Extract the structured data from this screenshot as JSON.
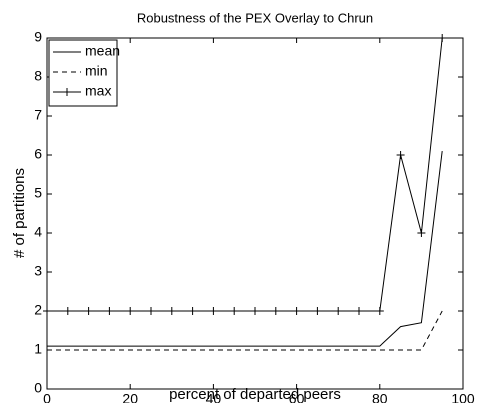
{
  "chart_data": {
    "type": "line",
    "title": "Robustness of the PEX Overlay to Chrun",
    "x_label": "percent of departed peers",
    "y_label": "# of partitions",
    "x": [
      0,
      5,
      10,
      15,
      20,
      25,
      30,
      35,
      40,
      45,
      50,
      55,
      60,
      65,
      70,
      75,
      80,
      85,
      90,
      95
    ],
    "series": [
      {
        "name": "mean",
        "color": "#000000",
        "linestyle": "solid",
        "marker": "none",
        "values": [
          1.1,
          1.1,
          1.1,
          1.1,
          1.1,
          1.1,
          1.1,
          1.1,
          1.1,
          1.1,
          1.1,
          1.1,
          1.1,
          1.1,
          1.1,
          1.1,
          1.1,
          1.6,
          1.7,
          6.1
        ]
      },
      {
        "name": "min",
        "color": "#000000",
        "linestyle": "dashed",
        "marker": "none",
        "values": [
          1,
          1,
          1,
          1,
          1,
          1,
          1,
          1,
          1,
          1,
          1,
          1,
          1,
          1,
          1,
          1,
          1,
          1,
          1,
          2
        ]
      },
      {
        "name": "max",
        "color": "#000000",
        "linestyle": "solid",
        "marker": "plus",
        "values": [
          2,
          2,
          2,
          2,
          2,
          2,
          2,
          2,
          2,
          2,
          2,
          2,
          2,
          2,
          2,
          2,
          2,
          6,
          4,
          9
        ]
      }
    ],
    "xlim": [
      0,
      100
    ],
    "xticks": [
      0,
      20,
      40,
      60,
      80,
      100
    ],
    "ylim": [
      0,
      9
    ],
    "yticks": [
      0,
      1,
      2,
      3,
      4,
      5,
      6,
      7,
      8,
      9
    ],
    "grid": false,
    "legend": "upper left"
  }
}
